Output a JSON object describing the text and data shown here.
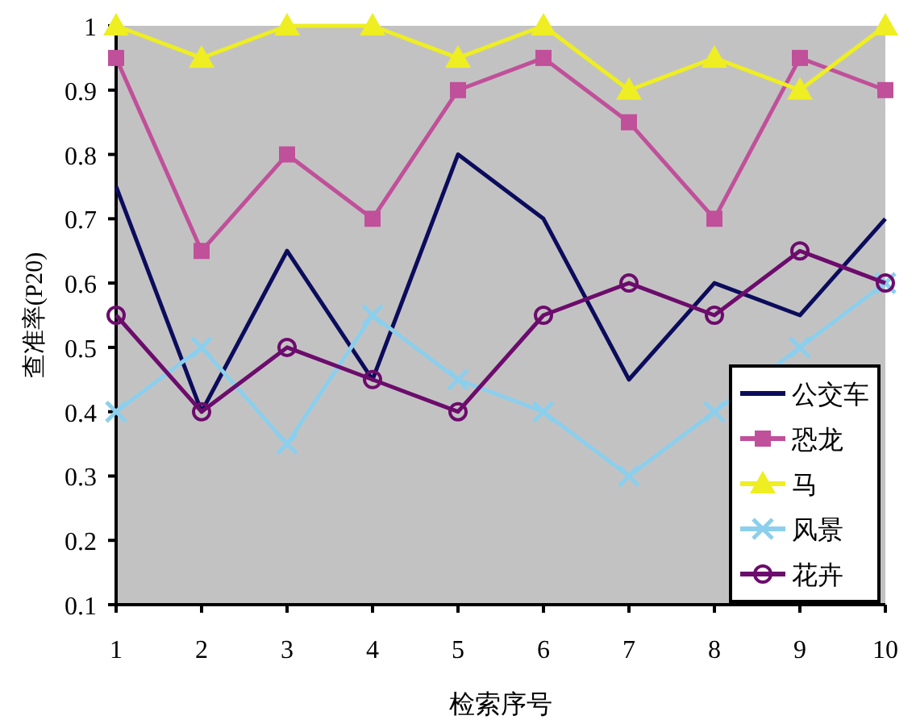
{
  "chart_data": {
    "type": "line",
    "xlabel": "检索序号",
    "ylabel": "查准率(P20)",
    "x": [
      1,
      2,
      3,
      4,
      5,
      6,
      7,
      8,
      9,
      10
    ],
    "xlim": [
      1,
      10
    ],
    "xticks": [
      1,
      2,
      3,
      4,
      5,
      6,
      7,
      8,
      9,
      10
    ],
    "ylim": [
      0.1,
      1
    ],
    "yticks": [
      0.1,
      0.2,
      0.3,
      0.4,
      0.5,
      0.6,
      0.7,
      0.8,
      0.9,
      1
    ],
    "grid": false,
    "legend": "bottom right",
    "series": [
      {
        "name": "公交车",
        "color": "#0c0c5c",
        "marker": "none",
        "values": [
          0.75,
          0.4,
          0.65,
          0.45,
          0.8,
          0.7,
          0.45,
          0.6,
          0.55,
          0.7
        ]
      },
      {
        "name": "恐龙",
        "color": "#c0509a",
        "marker": "square",
        "values": [
          0.95,
          0.65,
          0.8,
          0.7,
          0.9,
          0.95,
          0.85,
          0.7,
          0.95,
          0.9
        ]
      },
      {
        "name": "马",
        "color": "#eeee22",
        "marker": "triangle",
        "values": [
          1,
          0.95,
          1,
          1,
          0.95,
          1,
          0.9,
          0.95,
          0.9,
          1
        ]
      },
      {
        "name": "风景",
        "color": "#8ccfec",
        "marker": "cross",
        "values": [
          0.4,
          0.5,
          0.35,
          0.55,
          0.45,
          0.4,
          0.3,
          0.4,
          0.5,
          0.6
        ]
      },
      {
        "name": "花卉",
        "color": "#6c0c6c",
        "marker": "circle",
        "values": [
          0.55,
          0.4,
          0.5,
          0.45,
          0.4,
          0.55,
          0.6,
          0.55,
          0.65,
          0.6
        ]
      }
    ]
  }
}
